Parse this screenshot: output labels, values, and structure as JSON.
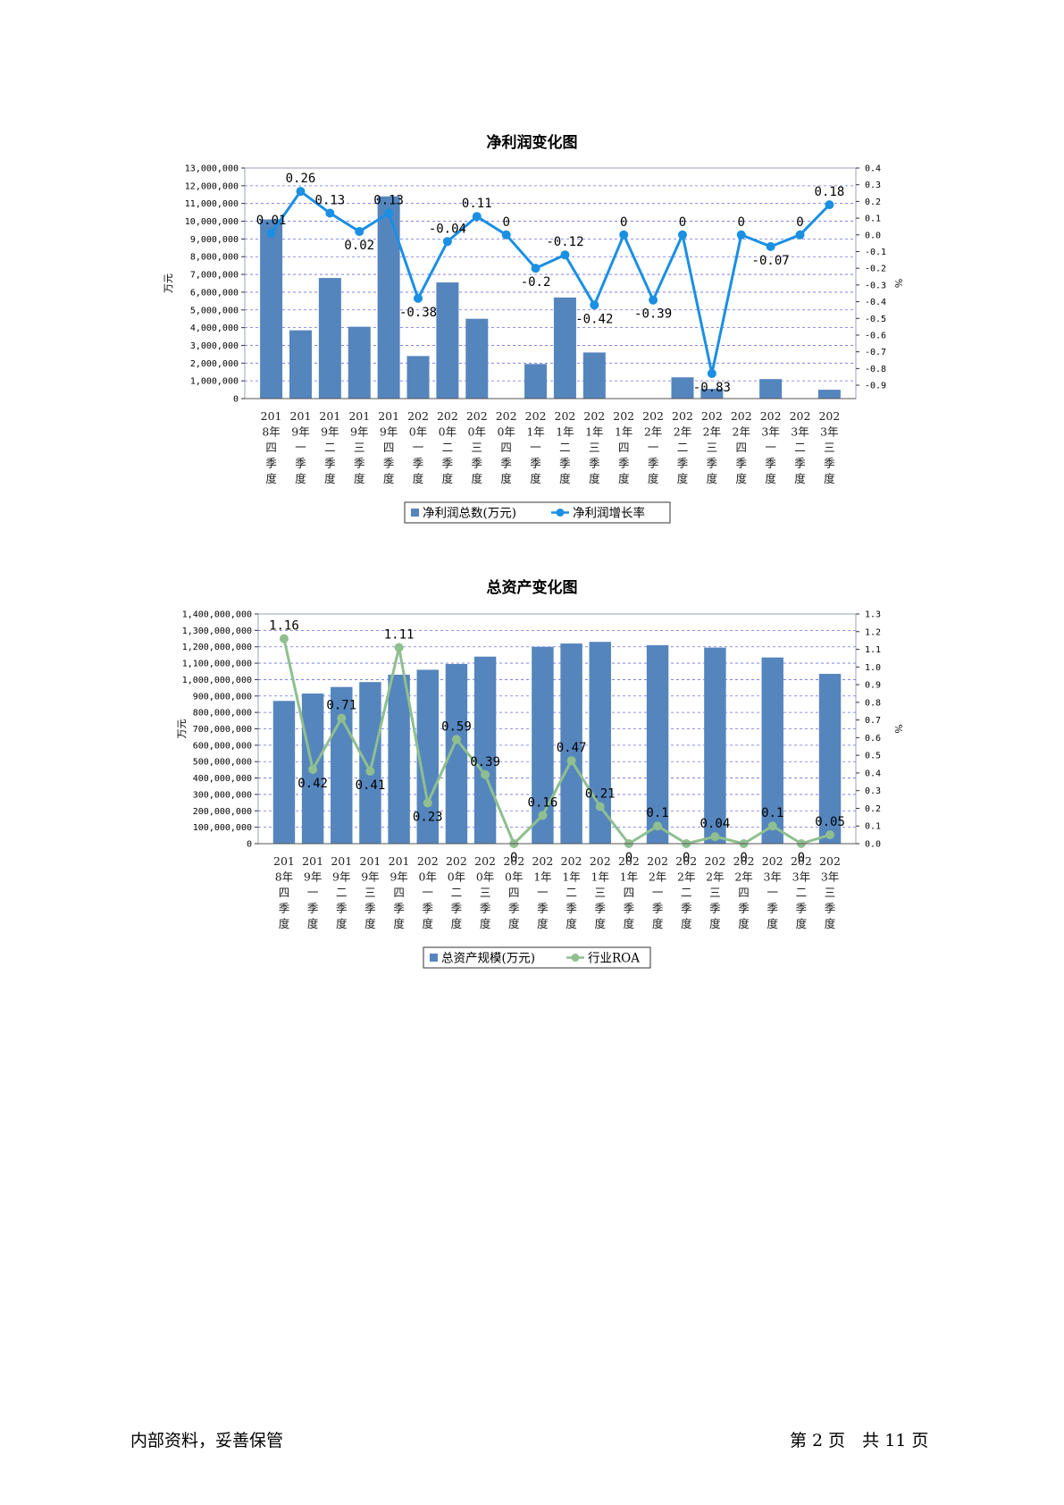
{
  "footer": {
    "left_text": "内部资料，妥善保管",
    "right_text": "第 2 页　共 11 页"
  },
  "chart_data": [
    {
      "type": "bar",
      "title": "净利润变化图",
      "ylabel": "万元",
      "y2label": "%",
      "categories": [
        "2018年四季度",
        "2019年一季度",
        "2019年二季度",
        "2019年三季度",
        "2019年四季度",
        "2020年一季度",
        "2020年二季度",
        "2020年三季度",
        "2020年四季度",
        "2021年一季度",
        "2021年二季度",
        "2021年三季度",
        "2021年四季度",
        "2022年一季度",
        "2022年二季度",
        "2022年三季度",
        "2022年四季度",
        "2023年一季度",
        "2023年二季度",
        "2023年三季度"
      ],
      "category_lines": [
        [
          "201",
          "8年",
          "四",
          "季",
          "度"
        ],
        [
          "201",
          "9年",
          "一",
          "季",
          "度"
        ],
        [
          "201",
          "9年",
          "二",
          "季",
          "度"
        ],
        [
          "201",
          "9年",
          "三",
          "季",
          "度"
        ],
        [
          "201",
          "9年",
          "四",
          "季",
          "度"
        ],
        [
          "202",
          "0年",
          "一",
          "季",
          "度"
        ],
        [
          "202",
          "0年",
          "二",
          "季",
          "度"
        ],
        [
          "202",
          "0年",
          "三",
          "季",
          "度"
        ],
        [
          "202",
          "0年",
          "四",
          "季",
          "度"
        ],
        [
          "202",
          "1年",
          "一",
          "季",
          "度"
        ],
        [
          "202",
          "1年",
          "二",
          "季",
          "度"
        ],
        [
          "202",
          "1年",
          "三",
          "季",
          "度"
        ],
        [
          "202",
          "1年",
          "四",
          "季",
          "度"
        ],
        [
          "202",
          "2年",
          "一",
          "季",
          "度"
        ],
        [
          "202",
          "2年",
          "二",
          "季",
          "度"
        ],
        [
          "202",
          "2年",
          "三",
          "季",
          "度"
        ],
        [
          "202",
          "2年",
          "四",
          "季",
          "度"
        ],
        [
          "202",
          "3年",
          "一",
          "季",
          "度"
        ],
        [
          "202",
          "3年",
          "二",
          "季",
          "度"
        ],
        [
          "202",
          "3年",
          "三",
          "季",
          "度"
        ]
      ],
      "ylim": [
        0,
        13000000
      ],
      "y_ticks": [
        "13,000,000",
        "12,000,000",
        "11,000,000",
        "10,000,000",
        "9,000,000",
        "8,000,000",
        "7,000,000",
        "6,000,000",
        "5,000,000",
        "4,000,000",
        "3,000,000",
        "2,000,000",
        "1,000,000",
        "0"
      ],
      "y2lim": [
        -0.98,
        0.4
      ],
      "y2_ticks": [
        "0.4",
        "0.3",
        "0.2",
        "0.1",
        "0.0",
        "-0.1",
        "-0.2",
        "-0.3",
        "-0.4",
        "-0.5",
        "-0.6",
        "-0.7",
        "-0.8",
        "-0.9"
      ],
      "series": [
        {
          "name": "净利润总数(万元)",
          "kind": "bar",
          "axis": "left",
          "color": "#5585BD",
          "values": [
            10100000,
            3850000,
            6800000,
            4050000,
            11400000,
            2400000,
            6550000,
            4500000,
            0,
            1950000,
            5700000,
            2600000,
            0,
            0,
            1200000,
            550000,
            0,
            1100000,
            0,
            500000
          ]
        },
        {
          "name": "净利润增长率",
          "kind": "line",
          "axis": "right",
          "color": "#1A8FE3",
          "values": [
            0.01,
            0.26,
            0.13,
            0.02,
            0.13,
            -0.38,
            -0.04,
            0.11,
            0,
            -0.2,
            -0.12,
            -0.42,
            0,
            -0.39,
            0,
            -0.83,
            0,
            -0.07,
            0,
            0.18
          ],
          "labels": [
            "0.01",
            "0.26",
            "0.13",
            "0.02",
            "0.13",
            "-0.38",
            "-0.04",
            "0.11",
            "0",
            "-0.2",
            "-0.12",
            "-0.42",
            "0",
            "-0.39",
            "0",
            "-0.83",
            "0",
            "-0.07",
            "0",
            "0.18"
          ]
        }
      ],
      "grid": true,
      "legend": "bottom"
    },
    {
      "type": "bar",
      "title": "总资产变化图",
      "ylabel": "万元",
      "y2label": "%",
      "categories": [
        "2018年四季度",
        "2019年一季度",
        "2019年二季度",
        "2019年三季度",
        "2019年四季度",
        "2020年一季度",
        "2020年二季度",
        "2020年三季度",
        "2020年四季度",
        "2021年一季度",
        "2021年二季度",
        "2021年三季度",
        "2021年四季度",
        "2022年一季度",
        "2022年二季度",
        "2022年三季度",
        "2022年四季度",
        "2023年一季度",
        "2023年二季度",
        "2023年三季度"
      ],
      "category_lines": [
        [
          "201",
          "8年",
          "四",
          "季",
          "度"
        ],
        [
          "201",
          "9年",
          "一",
          "季",
          "度"
        ],
        [
          "201",
          "9年",
          "二",
          "季",
          "度"
        ],
        [
          "201",
          "9年",
          "三",
          "季",
          "度"
        ],
        [
          "201",
          "9年",
          "四",
          "季",
          "度"
        ],
        [
          "202",
          "0年",
          "一",
          "季",
          "度"
        ],
        [
          "202",
          "0年",
          "二",
          "季",
          "度"
        ],
        [
          "202",
          "0年",
          "三",
          "季",
          "度"
        ],
        [
          "202",
          "0年",
          "四",
          "季",
          "度"
        ],
        [
          "202",
          "1年",
          "一",
          "季",
          "度"
        ],
        [
          "202",
          "1年",
          "二",
          "季",
          "度"
        ],
        [
          "202",
          "1年",
          "三",
          "季",
          "度"
        ],
        [
          "202",
          "1年",
          "四",
          "季",
          "度"
        ],
        [
          "202",
          "2年",
          "一",
          "季",
          "度"
        ],
        [
          "202",
          "2年",
          "二",
          "季",
          "度"
        ],
        [
          "202",
          "2年",
          "三",
          "季",
          "度"
        ],
        [
          "202",
          "2年",
          "四",
          "季",
          "度"
        ],
        [
          "202",
          "3年",
          "一",
          "季",
          "度"
        ],
        [
          "202",
          "3年",
          "二",
          "季",
          "度"
        ],
        [
          "202",
          "3年",
          "三",
          "季",
          "度"
        ]
      ],
      "ylim": [
        0,
        1400000000
      ],
      "y_ticks": [
        "1,400,000,000",
        "1,300,000,000",
        "1,200,000,000",
        "1,100,000,000",
        "1,000,000,000",
        "900,000,000",
        "800,000,000",
        "700,000,000",
        "600,000,000",
        "500,000,000",
        "400,000,000",
        "300,000,000",
        "200,000,000",
        "100,000,000",
        "0"
      ],
      "y2lim": [
        0,
        1.3
      ],
      "y2_ticks": [
        "1.3",
        "1.2",
        "1.1",
        "1.0",
        "0.9",
        "0.8",
        "0.7",
        "0.6",
        "0.5",
        "0.4",
        "0.3",
        "0.2",
        "0.1",
        "0.0"
      ],
      "series": [
        {
          "name": "总资产规模(万元)",
          "kind": "bar",
          "axis": "left",
          "color": "#5585BD",
          "values": [
            870000000,
            915000000,
            955000000,
            985000000,
            1030000000,
            1060000000,
            1095000000,
            1140000000,
            null,
            1200000000,
            1220000000,
            1230000000,
            null,
            1210000000,
            null,
            1195000000,
            null,
            1135000000,
            null,
            1035000000
          ]
        },
        {
          "name": "行业ROA",
          "kind": "line",
          "axis": "right",
          "color": "#8FBF8F",
          "values": [
            1.16,
            0.42,
            0.71,
            0.41,
            1.11,
            0.23,
            0.59,
            0.39,
            0,
            0.16,
            0.47,
            0.21,
            0,
            0.1,
            0,
            0.04,
            0,
            0.1,
            0,
            0.05
          ],
          "labels": [
            "1.16",
            "0.42",
            "0.71",
            "0.41",
            "1.11",
            "0.23",
            "0.59",
            "0.39",
            "0",
            "0.16",
            "0.47",
            "0.21",
            "0",
            "0.1",
            "0",
            "0.04",
            "0",
            "0.1",
            "0",
            "0.05"
          ]
        }
      ],
      "grid": true,
      "legend": "bottom"
    }
  ]
}
